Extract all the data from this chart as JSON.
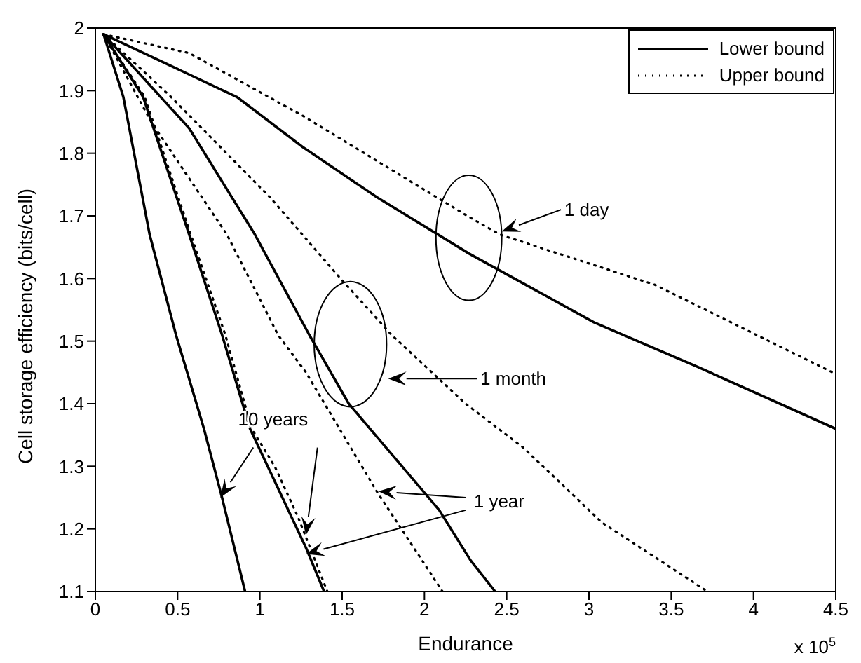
{
  "chart_data": {
    "type": "line",
    "xlabel": "Endurance",
    "ylabel": "Cell storage efficiency (bits/cell)",
    "xlim": [
      0,
      4.5
    ],
    "ylim": [
      1.1,
      2
    ],
    "xticks": [
      0,
      0.5,
      1,
      1.5,
      2,
      2.5,
      3,
      3.5,
      4,
      4.5
    ],
    "yticks": [
      1.1,
      1.2,
      1.3,
      1.4,
      1.5,
      1.6,
      1.7,
      1.8,
      1.9,
      2
    ],
    "grid": false,
    "legend": "top right",
    "marker": "none",
    "series": [
      {
        "name": "Lower bound",
        "color": "#000000",
        "line_style": "solid",
        "x": [
          0.05,
          0.86,
          1.26,
          1.71,
          2.27,
          3.03,
          3.65,
          4.5
        ],
        "values": [
          1.99,
          1.89,
          1.81,
          1.73,
          1.64,
          1.53,
          1.46,
          1.36
        ]
      },
      {
        "name": "Upper bound",
        "color": "#000000",
        "line_style": "dotted",
        "x": [
          0.05,
          0.57,
          1.26,
          2.26,
          2.46,
          3.4,
          4.48
        ],
        "values": [
          1.99,
          1.96,
          1.86,
          1.7,
          1.67,
          1.59,
          1.45
        ]
      },
      {
        "color": "#000000",
        "line_style": "solid",
        "x": [
          0.05,
          0.57,
          0.97,
          1.3,
          1.54,
          2.09,
          2.28,
          2.43
        ],
        "values": [
          1.99,
          1.84,
          1.67,
          1.51,
          1.4,
          1.23,
          1.15,
          1.1
        ]
      },
      {
        "color": "#000000",
        "line_style": "dotted",
        "x": [
          0.05,
          0.46,
          1.06,
          1.49,
          1.8,
          2.25,
          2.6,
          3.08,
          3.72
        ],
        "values": [
          1.99,
          1.89,
          1.73,
          1.6,
          1.51,
          1.4,
          1.33,
          1.21,
          1.1
        ]
      },
      {
        "color": "#000000",
        "line_style": "solid",
        "x": [
          0.05,
          0.29,
          0.57,
          0.77,
          0.94,
          1.28,
          1.39
        ],
        "values": [
          1.99,
          1.89,
          1.67,
          1.51,
          1.36,
          1.17,
          1.1
        ]
      },
      {
        "color": "#000000",
        "line_style": "dotted",
        "x": [
          0.05,
          0.34,
          0.8,
          1.11,
          1.28,
          1.71,
          2.11
        ],
        "values": [
          1.99,
          1.85,
          1.67,
          1.51,
          1.45,
          1.26,
          1.1
        ]
      },
      {
        "color": "#000000",
        "line_style": "solid",
        "x": [
          0.05,
          0.17,
          0.33,
          0.49,
          0.66,
          0.77,
          0.91
        ],
        "values": [
          1.99,
          1.89,
          1.67,
          1.51,
          1.36,
          1.25,
          1.1
        ]
      },
      {
        "color": "#000000",
        "line_style": "dotted",
        "x": [
          0.05,
          0.3,
          0.58,
          0.79,
          0.95,
          1.09,
          1.23,
          1.41
        ],
        "values": [
          1.99,
          1.89,
          1.67,
          1.51,
          1.36,
          1.3,
          1.22,
          1.1
        ]
      }
    ],
    "annotations": [
      "1 day",
      "1 month",
      "1 year",
      "10 years",
      "x 10$^{5}$"
    ]
  }
}
